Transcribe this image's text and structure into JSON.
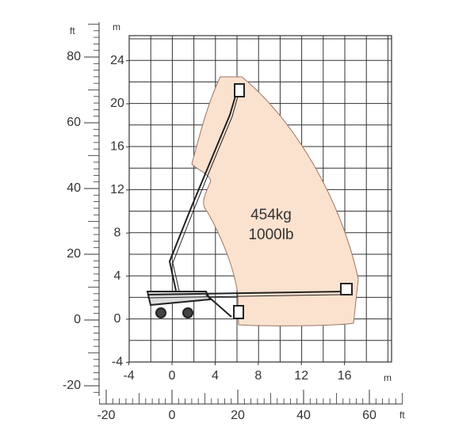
{
  "axes": {
    "y_m": {
      "unit": "m",
      "ticks": [
        -4,
        0,
        4,
        8,
        12,
        16,
        20,
        24
      ]
    },
    "x_m": {
      "unit": "m",
      "ticks": [
        -4,
        0,
        4,
        8,
        12,
        16
      ]
    },
    "y_ft": {
      "unit": "ft",
      "ticks": [
        -20,
        0,
        20,
        40,
        60,
        80
      ]
    },
    "x_ft": {
      "unit": "ft",
      "ticks": [
        -20,
        0,
        20,
        40,
        60
      ]
    }
  },
  "load": {
    "kg": "454kg",
    "lb": "1000lb"
  }
}
